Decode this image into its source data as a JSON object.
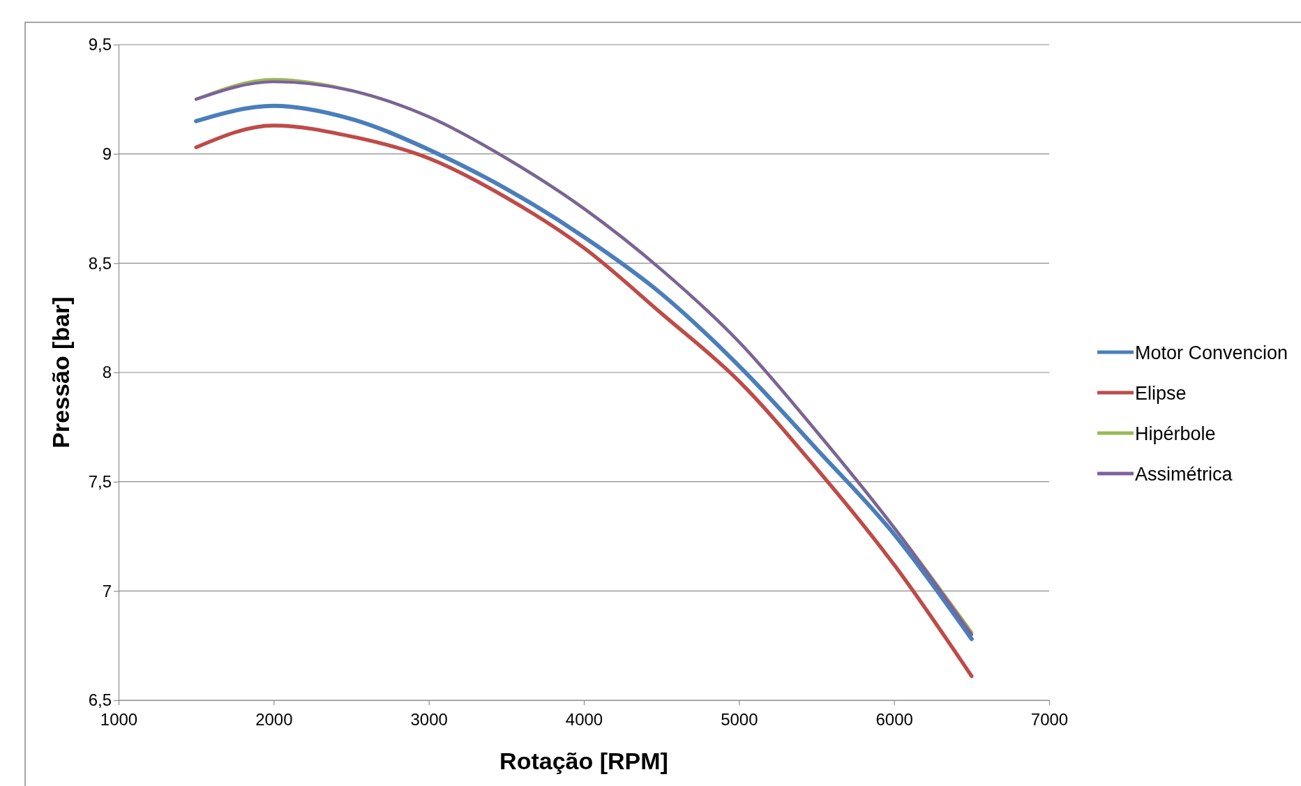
{
  "chart_data": {
    "type": "line",
    "xlabel": "Rotação [RPM]",
    "ylabel": "Pressão [bar]",
    "x": [
      1500,
      2000,
      2500,
      3000,
      3500,
      4000,
      4500,
      5000,
      5500,
      6000,
      6500
    ],
    "xlim": [
      1000,
      7000
    ],
    "xticks": [
      1000,
      2000,
      3000,
      4000,
      5000,
      6000,
      7000
    ],
    "ylim": [
      6.5,
      9.5
    ],
    "yticks": [
      {
        "value": 6.5,
        "label": "6,5"
      },
      7,
      {
        "value": 7.5,
        "label": "7,5"
      },
      8,
      {
        "value": 8.5,
        "label": "8,5"
      },
      9,
      {
        "value": 9.5,
        "label": "9,5"
      }
    ],
    "grid": "y",
    "legend": "right",
    "marker": "none",
    "line_style": "solid",
    "series": [
      {
        "name": "Motor Convencion",
        "color": "#4a7ebb",
        "values": [
          9.15,
          9.22,
          9.16,
          9.02,
          8.84,
          8.62,
          8.36,
          8.03,
          7.65,
          7.26,
          6.78
        ]
      },
      {
        "name": "Elipse",
        "color": "#be4b48",
        "values": [
          9.03,
          9.13,
          9.08,
          8.98,
          8.8,
          8.57,
          8.27,
          7.96,
          7.56,
          7.12,
          6.61
        ]
      },
      {
        "name": "Hipérbole",
        "color": "#98b954",
        "values": [
          9.25,
          9.34,
          9.29,
          9.17,
          8.98,
          8.75,
          8.47,
          8.14,
          7.73,
          7.29,
          6.81
        ]
      },
      {
        "name": "Assimétrica",
        "color": "#7d60a0",
        "values": [
          9.25,
          9.33,
          9.29,
          9.17,
          8.98,
          8.75,
          8.47,
          8.14,
          7.73,
          7.29,
          6.8
        ]
      }
    ]
  }
}
